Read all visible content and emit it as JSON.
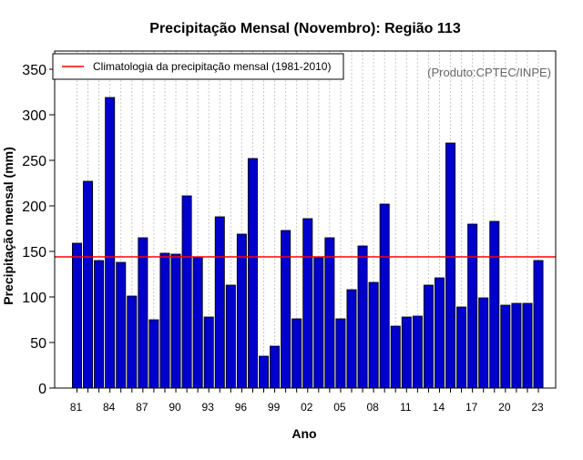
{
  "chart_data": {
    "type": "bar",
    "title": "Precipitação Mensal (Novembro): Região 113",
    "xlabel": "Ano",
    "ylabel": "Precipitação mensal (mm)",
    "ylim": [
      0,
      370
    ],
    "yticks": [
      0,
      50,
      100,
      150,
      200,
      250,
      300,
      350
    ],
    "categories": [
      "81",
      "82",
      "83",
      "84",
      "85",
      "86",
      "87",
      "88",
      "89",
      "90",
      "91",
      "92",
      "93",
      "94",
      "95",
      "96",
      "97",
      "98",
      "99",
      "00",
      "01",
      "02",
      "03",
      "04",
      "05",
      "06",
      "07",
      "08",
      "09",
      "10",
      "11",
      "12",
      "13",
      "14",
      "15",
      "16",
      "17",
      "18",
      "19",
      "20",
      "21",
      "22",
      "23"
    ],
    "xtick_labels": [
      "81",
      "84",
      "87",
      "90",
      "93",
      "96",
      "99",
      "02",
      "05",
      "08",
      "11",
      "14",
      "17",
      "20",
      "23"
    ],
    "values": [
      159,
      227,
      140,
      319,
      138,
      101,
      165,
      75,
      148,
      147,
      211,
      144,
      78,
      188,
      113,
      169,
      252,
      35,
      46,
      173,
      76,
      186,
      143,
      165,
      76,
      108,
      156,
      116,
      202,
      68,
      78,
      79,
      113,
      121,
      269,
      89,
      180,
      99,
      183,
      91,
      93,
      93,
      140
    ],
    "bar_color": "#0000cc",
    "climatology": {
      "label": "Climatologia da precipitação mensal (1981-2010)",
      "value": 144,
      "color": "#ff0000"
    },
    "credit": "(Produto:CPTEC/INPE)",
    "grid": "vertical-dotted",
    "legend_position": "top-left"
  }
}
